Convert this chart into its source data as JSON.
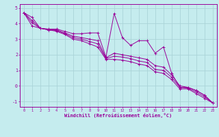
{
  "xlabel": "Windchill (Refroidissement éolien,°C)",
  "xlim": [
    -0.5,
    23.5
  ],
  "ylim": [
    -1.35,
    5.25
  ],
  "yticks": [
    -1,
    0,
    1,
    2,
    3,
    4,
    5
  ],
  "xticks": [
    0,
    1,
    2,
    3,
    4,
    5,
    6,
    7,
    8,
    9,
    10,
    11,
    12,
    13,
    14,
    15,
    16,
    17,
    18,
    19,
    20,
    21,
    22,
    23
  ],
  "bg_color": "#c5ecee",
  "line_color": "#990099",
  "grid_color": "#aad4d8",
  "series": [
    [
      4.7,
      4.4,
      3.7,
      3.65,
      3.65,
      3.5,
      3.35,
      3.35,
      3.4,
      3.4,
      1.85,
      4.65,
      3.1,
      2.6,
      2.9,
      2.9,
      2.1,
      2.5,
      0.8,
      -0.1,
      -0.1,
      -0.3,
      -0.6,
      -1.1
    ],
    [
      4.7,
      4.2,
      3.7,
      3.6,
      3.6,
      3.4,
      3.2,
      3.1,
      3.0,
      2.9,
      1.8,
      2.1,
      2.0,
      1.9,
      1.8,
      1.7,
      1.3,
      1.2,
      0.7,
      0.0,
      -0.1,
      -0.3,
      -0.6,
      -1.1
    ],
    [
      4.7,
      4.05,
      3.7,
      3.6,
      3.55,
      3.35,
      3.1,
      3.0,
      2.85,
      2.7,
      1.75,
      1.9,
      1.85,
      1.75,
      1.6,
      1.5,
      1.05,
      1.0,
      0.55,
      -0.1,
      -0.15,
      -0.4,
      -0.7,
      -1.1
    ],
    [
      4.7,
      3.85,
      3.7,
      3.6,
      3.5,
      3.3,
      3.0,
      2.9,
      2.7,
      2.5,
      1.7,
      1.7,
      1.65,
      1.55,
      1.4,
      1.3,
      0.9,
      0.8,
      0.4,
      -0.2,
      -0.2,
      -0.5,
      -0.8,
      -1.1
    ]
  ]
}
